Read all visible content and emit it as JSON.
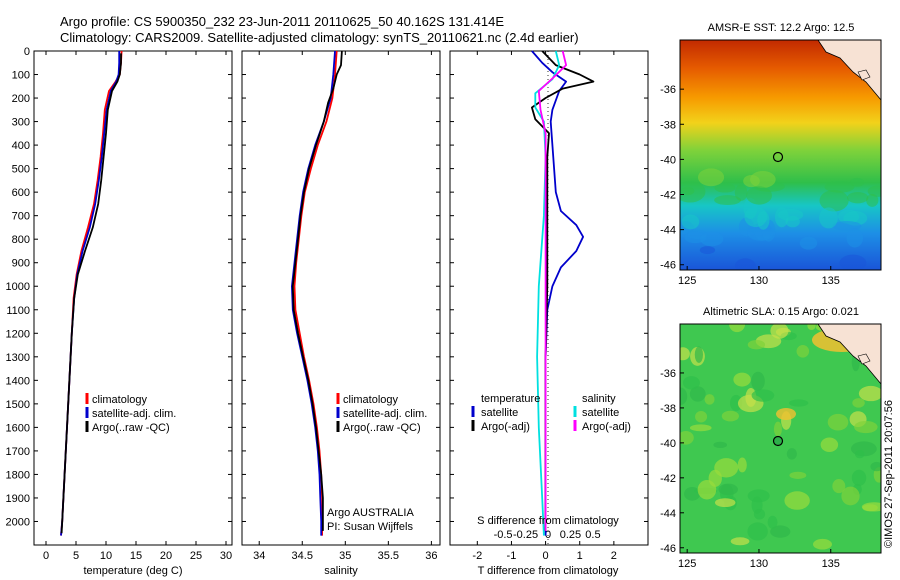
{
  "header": {
    "line1": "Argo profile: CS 5900350_232 23-Jun-2011 20110625_50 40.162S 131.414E",
    "line2": "Climatology: CARS2009. Satellite-adjusted climatology: synTS_20110621.nc (2.4d earlier)"
  },
  "colors": {
    "climatology": "#ff0000",
    "satellite": "#0000cc",
    "argo": "#000000",
    "salinity_satellite": "#00e0e0",
    "salinity_argo": "#ff00ff"
  },
  "chart_data": [
    {
      "type": "line",
      "id": "temperature",
      "xlabel": "temperature (deg C)",
      "xlim": [
        -2,
        31
      ],
      "ylim": [
        2100,
        0
      ],
      "xticks": [
        "0",
        "5",
        "10",
        "15",
        "20",
        "25",
        "30"
      ],
      "yticks": [
        "0",
        "100",
        "200",
        "300",
        "400",
        "500",
        "600",
        "700",
        "800",
        "900",
        "1000",
        "1100",
        "1200",
        "1300",
        "1400",
        "1500",
        "1600",
        "1700",
        "1800",
        "1900",
        "2000"
      ],
      "legend": [
        "climatology",
        "satellite-adj. clim.",
        "Argo(..raw -QC)"
      ],
      "series": [
        {
          "name": "climatology",
          "color_key": "climatology",
          "points": [
            [
              12.6,
              0
            ],
            [
              12.5,
              50
            ],
            [
              12.3,
              100
            ],
            [
              11.6,
              130
            ],
            [
              10.5,
              170
            ],
            [
              9.8,
              250
            ],
            [
              9.5,
              350
            ],
            [
              9.1,
              450
            ],
            [
              8.6,
              550
            ],
            [
              8.0,
              650
            ],
            [
              7.0,
              750
            ],
            [
              5.9,
              850
            ],
            [
              5.1,
              950
            ],
            [
              4.6,
              1050
            ],
            [
              4.3,
              1200
            ],
            [
              3.9,
              1400
            ],
            [
              3.5,
              1600
            ],
            [
              3.1,
              1800
            ],
            [
              2.7,
              2000
            ],
            [
              2.5,
              2060
            ]
          ]
        },
        {
          "name": "satellite-adj. clim.",
          "color_key": "satellite",
          "points": [
            [
              12.2,
              0
            ],
            [
              12.2,
              50
            ],
            [
              12.1,
              100
            ],
            [
              11.7,
              130
            ],
            [
              10.8,
              170
            ],
            [
              10.1,
              250
            ],
            [
              9.7,
              350
            ],
            [
              9.3,
              450
            ],
            [
              8.8,
              550
            ],
            [
              8.2,
              650
            ],
            [
              7.3,
              750
            ],
            [
              6.1,
              850
            ],
            [
              5.2,
              950
            ],
            [
              4.7,
              1050
            ],
            [
              4.3,
              1200
            ],
            [
              3.9,
              1400
            ],
            [
              3.5,
              1600
            ],
            [
              3.1,
              1800
            ],
            [
              2.7,
              2000
            ],
            [
              2.5,
              2060
            ]
          ]
        },
        {
          "name": "Argo(..raw -QC)",
          "color_key": "argo",
          "points": [
            [
              12.5,
              10
            ],
            [
              12.5,
              50
            ],
            [
              12.3,
              100
            ],
            [
              11.9,
              130
            ],
            [
              11.0,
              170
            ],
            [
              10.3,
              250
            ],
            [
              10.0,
              350
            ],
            [
              9.6,
              450
            ],
            [
              9.2,
              550
            ],
            [
              8.7,
              650
            ],
            [
              7.8,
              750
            ],
            [
              6.5,
              850
            ],
            [
              5.3,
              950
            ],
            [
              4.7,
              1050
            ],
            [
              4.3,
              1200
            ],
            [
              3.9,
              1400
            ],
            [
              3.5,
              1600
            ],
            [
              3.1,
              1800
            ],
            [
              2.7,
              2000
            ],
            [
              2.6,
              2050
            ]
          ]
        }
      ]
    },
    {
      "type": "line",
      "id": "salinity",
      "xlabel": "salinity",
      "xlim": [
        33.8,
        36.1
      ],
      "ylim": [
        2100,
        0
      ],
      "xticks": [
        "34",
        "34.5",
        "35",
        "35.5",
        "36"
      ],
      "legend": [
        "climatology",
        "satellite-adj. clim.",
        "Argo(..raw -QC)"
      ],
      "annotation": [
        "Argo AUSTRALIA",
        "PI: Susan Wijffels"
      ],
      "series": [
        {
          "name": "climatology",
          "color_key": "climatology",
          "points": [
            [
              34.9,
              0
            ],
            [
              34.88,
              100
            ],
            [
              34.85,
              200
            ],
            [
              34.78,
              300
            ],
            [
              34.68,
              400
            ],
            [
              34.6,
              500
            ],
            [
              34.53,
              600
            ],
            [
              34.49,
              700
            ],
            [
              34.46,
              800
            ],
            [
              34.43,
              900
            ],
            [
              34.41,
              1000
            ],
            [
              34.42,
              1100
            ],
            [
              34.47,
              1200
            ],
            [
              34.52,
              1300
            ],
            [
              34.58,
              1400
            ],
            [
              34.63,
              1500
            ],
            [
              34.67,
              1600
            ],
            [
              34.7,
              1700
            ],
            [
              34.72,
              1800
            ],
            [
              34.73,
              1900
            ],
            [
              34.73,
              2000
            ],
            [
              34.73,
              2060
            ]
          ]
        },
        {
          "name": "satellite-adj. clim.",
          "color_key": "satellite",
          "points": [
            [
              34.88,
              0
            ],
            [
              34.86,
              100
            ],
            [
              34.83,
              200
            ],
            [
              34.75,
              300
            ],
            [
              34.65,
              400
            ],
            [
              34.57,
              500
            ],
            [
              34.51,
              600
            ],
            [
              34.47,
              700
            ],
            [
              34.44,
              800
            ],
            [
              34.41,
              900
            ],
            [
              34.38,
              1000
            ],
            [
              34.39,
              1100
            ],
            [
              34.44,
              1200
            ],
            [
              34.5,
              1300
            ],
            [
              34.56,
              1400
            ],
            [
              34.61,
              1500
            ],
            [
              34.65,
              1600
            ],
            [
              34.68,
              1700
            ],
            [
              34.7,
              1800
            ],
            [
              34.71,
              1900
            ],
            [
              34.72,
              2000
            ],
            [
              34.72,
              2060
            ]
          ]
        },
        {
          "name": "Argo(..raw -QC)",
          "color_key": "argo",
          "points": [
            [
              34.96,
              0
            ],
            [
              34.95,
              60
            ],
            [
              34.9,
              100
            ],
            [
              34.86,
              160
            ],
            [
              34.8,
              220
            ],
            [
              34.75,
              300
            ],
            [
              34.66,
              400
            ],
            [
              34.58,
              500
            ],
            [
              34.52,
              600
            ],
            [
              34.48,
              700
            ],
            [
              34.45,
              800
            ],
            [
              34.42,
              900
            ],
            [
              34.39,
              1000
            ],
            [
              34.4,
              1100
            ],
            [
              34.45,
              1200
            ],
            [
              34.51,
              1300
            ],
            [
              34.57,
              1400
            ],
            [
              34.62,
              1500
            ],
            [
              34.66,
              1600
            ],
            [
              34.69,
              1700
            ],
            [
              34.72,
              1800
            ],
            [
              34.74,
              1900
            ],
            [
              34.74,
              2000
            ],
            [
              34.74,
              2040
            ]
          ]
        }
      ]
    },
    {
      "type": "line",
      "id": "difference",
      "xlabel": "T difference from climatology",
      "xlabel_top": "S difference from climatology",
      "xlim": [
        -2.8,
        3.0
      ],
      "ylim": [
        2100,
        0
      ],
      "xticks": [
        "-2",
        "-1",
        "0",
        "1",
        "2"
      ],
      "sticks": [
        "-0.5",
        "-0.25",
        "0",
        "0.25",
        "0.5"
      ],
      "legend_temperature": {
        "title": "temperature",
        "items": [
          "satellite",
          "Argo(-adj)"
        ]
      },
      "legend_salinity": {
        "title": "salinity",
        "items": [
          "satellite",
          "Argo(-adj)"
        ]
      },
      "series": [
        {
          "name": "temperature satellite",
          "color_key": "satellite",
          "points": [
            [
              -0.4,
              0
            ],
            [
              -0.1,
              50
            ],
            [
              0.2,
              90
            ],
            [
              0.6,
              130
            ],
            [
              0.4,
              170
            ],
            [
              0.2,
              250
            ],
            [
              0.15,
              300
            ],
            [
              0.2,
              400
            ],
            [
              0.25,
              500
            ],
            [
              0.3,
              600
            ],
            [
              0.45,
              680
            ],
            [
              0.9,
              740
            ],
            [
              1.1,
              790
            ],
            [
              0.9,
              850
            ],
            [
              0.45,
              920
            ],
            [
              0.2,
              1000
            ],
            [
              0.05,
              1100
            ],
            [
              0,
              1300
            ],
            [
              0,
              1600
            ],
            [
              0,
              2060
            ]
          ]
        },
        {
          "name": "temperature Argo(-adj)",
          "color_key": "argo",
          "points": [
            [
              -0.1,
              0
            ],
            [
              0.3,
              60
            ],
            [
              1.0,
              100
            ],
            [
              1.4,
              130
            ],
            [
              0.5,
              160
            ],
            [
              0,
              200
            ],
            [
              -0.4,
              240
            ],
            [
              -0.3,
              290
            ],
            [
              0.1,
              350
            ],
            [
              0.05,
              450
            ],
            [
              0.05,
              600
            ],
            [
              0.05,
              800
            ],
            [
              0.05,
              1000
            ],
            [
              0,
              1300
            ],
            [
              0,
              1700
            ],
            [
              0,
              2040
            ]
          ]
        },
        {
          "name": "salinity satellite",
          "color_key": "salinity_satellite",
          "points": [
            [
              0.3,
              0
            ],
            [
              0.4,
              60
            ],
            [
              0.2,
              120
            ],
            [
              -0.3,
              180
            ],
            [
              -0.3,
              240
            ],
            [
              -0.05,
              300
            ],
            [
              0,
              450
            ],
            [
              -0.05,
              700
            ],
            [
              -0.2,
              1000
            ],
            [
              -0.25,
              1300
            ],
            [
              -0.2,
              1600
            ],
            [
              -0.1,
              1900
            ],
            [
              -0.05,
              2060
            ]
          ]
        },
        {
          "name": "salinity Argo(-adj)",
          "color_key": "salinity_argo",
          "points": [
            [
              0.5,
              0
            ],
            [
              0.6,
              60
            ],
            [
              0.25,
              110
            ],
            [
              -0.2,
              170
            ],
            [
              -0.15,
              250
            ],
            [
              0,
              350
            ],
            [
              0,
              700
            ],
            [
              0,
              1200
            ],
            [
              0,
              1700
            ],
            [
              0,
              2040
            ]
          ]
        }
      ]
    }
  ],
  "maps": [
    {
      "id": "sst",
      "title": "AMSR-E SST: 12.2 Argo: 12.5",
      "xticks": [
        "125",
        "130",
        "135"
      ],
      "yticks": [
        "-36",
        "-38",
        "-40",
        "-42",
        "-44",
        "-46"
      ],
      "lon_range": [
        124.5,
        138.5
      ],
      "lat_range": [
        -46.3,
        -33.2
      ],
      "argo_position": [
        131.414,
        -40.162
      ]
    },
    {
      "id": "sla",
      "title": "Altimetric SLA: 0.15 Argo: 0.021",
      "xticks": [
        "125",
        "130",
        "135"
      ],
      "yticks": [
        "-36",
        "-38",
        "-40",
        "-42",
        "-44",
        "-46"
      ],
      "lon_range": [
        124.5,
        138.5
      ],
      "lat_range": [
        -46.3,
        -33.2
      ],
      "argo_position": [
        131.414,
        -40.162
      ]
    }
  ],
  "side_note": "©IMOS 27-Sep-2011 20:07:56"
}
